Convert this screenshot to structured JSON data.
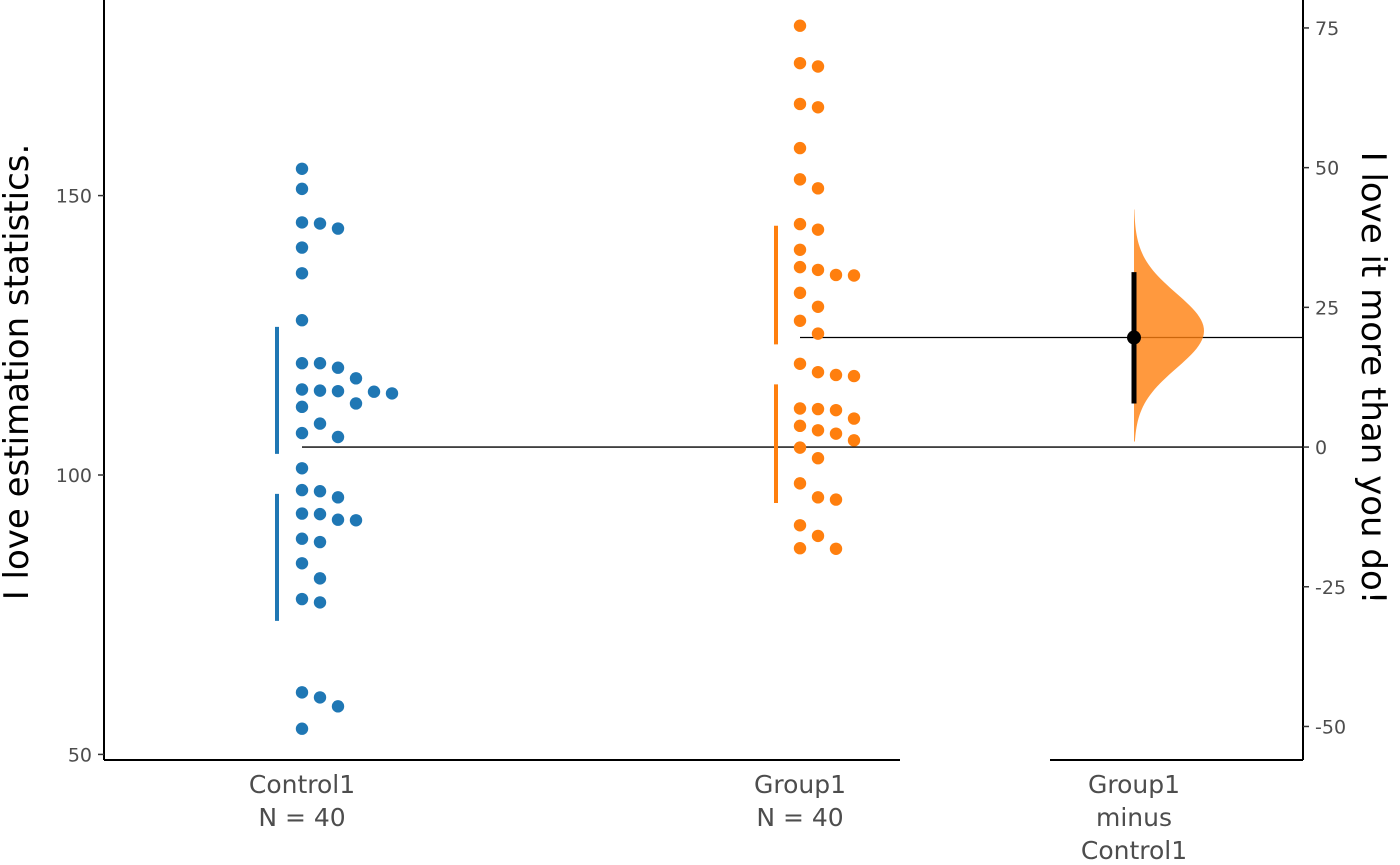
{
  "chart_data": {
    "type": "scatter",
    "subtype": "estimation-plot (Cumming plot)",
    "ylabel_left": "I love estimation statistics.",
    "ylabel_right": "I love it more than you do!",
    "left_axis": {
      "ylim": [
        49,
        185
      ],
      "ticks": [
        50,
        100,
        150
      ],
      "tick_labels": [
        "50",
        "100",
        "150"
      ]
    },
    "right_axis": {
      "ylim": [
        -56,
        80
      ],
      "ticks": [
        -50,
        -25,
        0,
        25,
        50,
        75
      ],
      "tick_labels": [
        "-50",
        "-25",
        "0",
        "25",
        "50",
        "75"
      ]
    },
    "grid": false,
    "legend": "none",
    "groups": [
      {
        "name": "Control1",
        "n_label": "N = 40",
        "color": "#1f77b4",
        "mean": 100.2,
        "sd": 26.3,
        "values": [
          154.8,
          151.2,
          144.1,
          145.0,
          145.2,
          140.7,
          136.1,
          127.7,
          120.0,
          119.2,
          120.0,
          117.3,
          114.9,
          112.2,
          112.8,
          114.6,
          115.0,
          115.1,
          115.3,
          109.2,
          106.8,
          107.5,
          101.2,
          96.0,
          97.1,
          97.3,
          91.9,
          92.0,
          93.0,
          93.1,
          88.0,
          88.6,
          84.2,
          81.5,
          77.2,
          77.8,
          58.6,
          60.2,
          61.1,
          54.6
        ]
      },
      {
        "name": "Group1",
        "n_label": "N = 40",
        "color": "#ff7f0e",
        "mean": 119.8,
        "sd": 24.8,
        "values": [
          180.4,
          173.1,
          173.7,
          165.8,
          166.4,
          158.5,
          151.3,
          152.9,
          143.9,
          144.9,
          140.3,
          132.6,
          135.7,
          135.8,
          136.7,
          137.2,
          130.1,
          127.6,
          125.3,
          119.9,
          117.7,
          117.9,
          118.4,
          110.1,
          111.6,
          111.8,
          111.9,
          106.2,
          108.0,
          107.4,
          108.8,
          103.0,
          104.9,
          98.5,
          95.6,
          96.0,
          91.0,
          89.1,
          86.9,
          86.8
        ]
      }
    ],
    "delta": {
      "label": "Group1\nminus\nControl1",
      "label_lines": [
        "Group1",
        "minus",
        "Control1"
      ],
      "color": "#ff7f0e",
      "mean_diff": 19.6,
      "ci_low": 7.8,
      "ci_high": 31.3,
      "bootstrap_range": [
        1,
        42.5
      ],
      "bootstrap_peak": 20.8
    }
  }
}
